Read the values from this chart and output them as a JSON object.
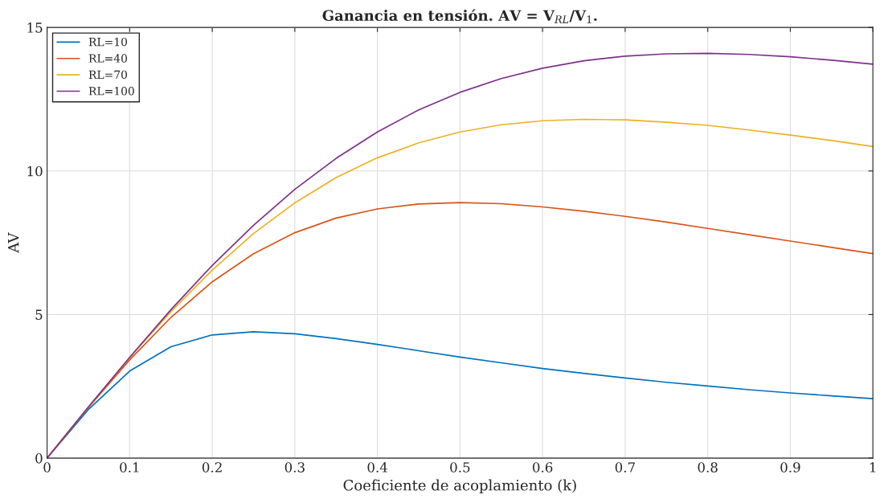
{
  "chart_data": {
    "type": "line",
    "title": "Ganancia en tensión. AV = V$_{RL}$/V$_{1}$.",
    "xlabel": "Coeficiente de acoplamiento (k)",
    "ylabel": "AV",
    "x": [
      0,
      0.05,
      0.1,
      0.15,
      0.2,
      0.25,
      0.3,
      0.35,
      0.4,
      0.45,
      0.5,
      0.55,
      0.6,
      0.65,
      0.7,
      0.75,
      0.8,
      0.85,
      0.9,
      0.95,
      1
    ],
    "series": [
      {
        "name": "RL=10",
        "color": "#0072bd",
        "values": [
          0,
          1.69,
          3.03,
          3.88,
          4.29,
          4.4,
          4.33,
          4.16,
          3.96,
          3.74,
          3.52,
          3.32,
          3.12,
          2.95,
          2.79,
          2.64,
          2.51,
          2.38,
          2.27,
          2.17,
          2.07
        ]
      },
      {
        "name": "RL=40",
        "color": "#d95319",
        "values": [
          0,
          1.76,
          3.42,
          4.9,
          6.14,
          7.12,
          7.85,
          8.36,
          8.68,
          8.85,
          8.9,
          8.86,
          8.75,
          8.6,
          8.42,
          8.22,
          8.0,
          7.78,
          7.56,
          7.34,
          7.12
        ]
      },
      {
        "name": "RL=70",
        "color": "#edb120",
        "values": [
          0,
          1.78,
          3.5,
          5.1,
          6.55,
          7.82,
          8.89,
          9.77,
          10.46,
          10.98,
          11.36,
          11.61,
          11.75,
          11.8,
          11.78,
          11.7,
          11.59,
          11.43,
          11.25,
          11.06,
          10.85
        ]
      },
      {
        "name": "RL=100",
        "color": "#7e2f8e",
        "values": [
          0,
          1.78,
          3.51,
          5.17,
          6.71,
          8.11,
          9.36,
          10.44,
          11.36,
          12.13,
          12.74,
          13.22,
          13.58,
          13.84,
          14.0,
          14.08,
          14.1,
          14.06,
          13.98,
          13.86,
          13.72
        ]
      }
    ],
    "xlim": [
      0,
      1
    ],
    "ylim": [
      0,
      15
    ],
    "xticks": [
      0,
      0.1,
      0.2,
      0.3,
      0.4,
      0.5,
      0.6,
      0.7,
      0.8,
      0.9,
      1
    ],
    "yticks": [
      0,
      5,
      10,
      15
    ],
    "grid": true,
    "legend": "top left"
  }
}
